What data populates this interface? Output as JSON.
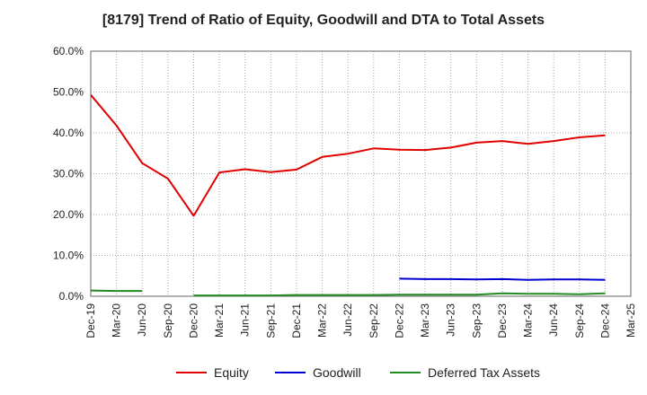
{
  "chart_data": {
    "type": "line",
    "title": "[8179]  Trend of Ratio of Equity, Goodwill and DTA to Total Assets",
    "xlabel": "",
    "ylabel": "",
    "categories": [
      "Dec-19",
      "Mar-20",
      "Jun-20",
      "Sep-20",
      "Dec-20",
      "Mar-21",
      "Jun-21",
      "Sep-21",
      "Dec-21",
      "Mar-22",
      "Jun-22",
      "Sep-22",
      "Dec-22",
      "Mar-23",
      "Jun-23",
      "Sep-23",
      "Dec-23",
      "Mar-24",
      "Jun-24",
      "Sep-24",
      "Dec-24",
      "Mar-25"
    ],
    "y_ticks": [
      "0.0%",
      "10.0%",
      "20.0%",
      "30.0%",
      "40.0%",
      "50.0%",
      "60.0%"
    ],
    "ylim": [
      0,
      60
    ],
    "grid": true,
    "legend_position": "bottom",
    "series": [
      {
        "name": "Equity",
        "color": "#e00000",
        "values": [
          49.3,
          41.8,
          32.6,
          28.8,
          19.7,
          30.3,
          31.1,
          30.4,
          31.0,
          34.1,
          34.9,
          36.2,
          35.9,
          35.8,
          36.4,
          37.6,
          38.0,
          37.3,
          38.0,
          38.9,
          39.4,
          null
        ]
      },
      {
        "name": "Goodwill",
        "color": "#0000d0",
        "values": [
          null,
          null,
          null,
          null,
          null,
          null,
          null,
          null,
          null,
          null,
          null,
          null,
          4.3,
          4.2,
          4.2,
          4.1,
          4.2,
          4.0,
          4.1,
          4.1,
          4.0,
          null
        ]
      },
      {
        "name": "Deferred Tax Assets",
        "color": "#228b22",
        "values": [
          1.4,
          1.3,
          1.3,
          null,
          0.2,
          0.2,
          0.2,
          0.2,
          0.3,
          0.3,
          0.3,
          0.3,
          0.4,
          0.4,
          0.4,
          0.4,
          0.7,
          0.6,
          0.6,
          0.5,
          0.7,
          null
        ]
      }
    ]
  }
}
